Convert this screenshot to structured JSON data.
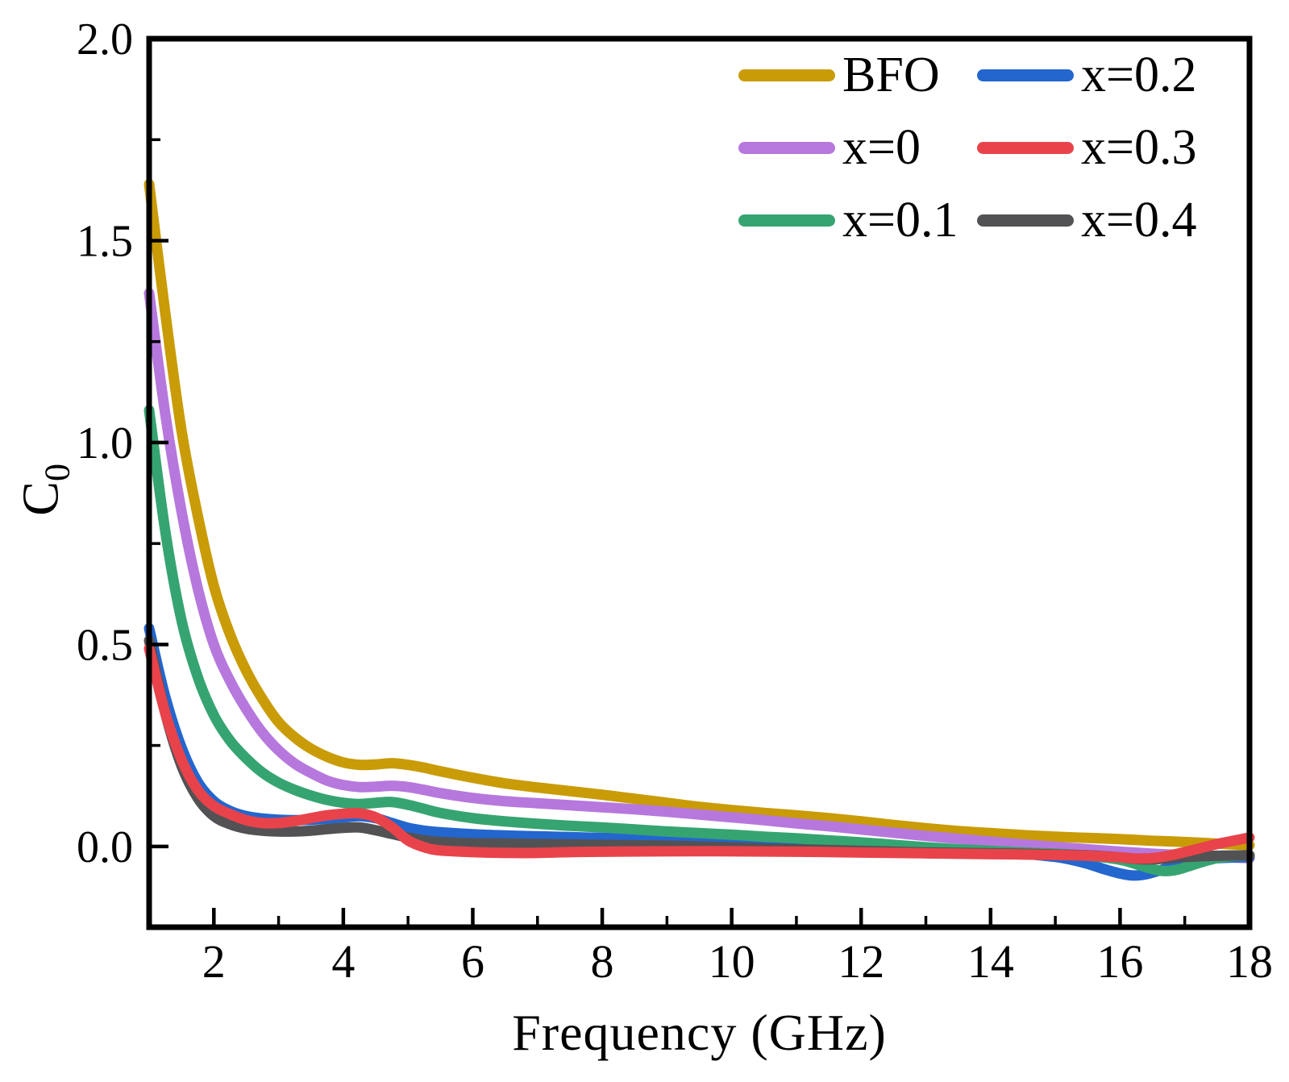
{
  "chart_data": {
    "type": "line",
    "title": "",
    "xlabel": "Frequency (GHz)",
    "ylabel_main": "C",
    "ylabel_sub": "0",
    "xlim": [
      1,
      18
    ],
    "ylim": [
      -0.2,
      2.0
    ],
    "x_major_ticks": [
      2,
      4,
      6,
      8,
      10,
      12,
      14,
      16,
      18
    ],
    "x_minor_ticks": [
      3,
      5,
      7,
      9,
      11,
      13,
      15,
      17
    ],
    "y_major_ticks": [
      0.0,
      0.5,
      1.0,
      1.5,
      2.0
    ],
    "y_minor_ticks": [
      0.25,
      0.75,
      1.25,
      1.75
    ],
    "y_tick_decimals": 1,
    "grid": false,
    "legend_position": "top-right inside plot, 2 columns, no frame",
    "axis_color": "#000000",
    "series": [
      {
        "name": "BFO",
        "color": "#C99B06",
        "points": [
          [
            1,
            1.64
          ],
          [
            1.25,
            1.32
          ],
          [
            1.5,
            1.03
          ],
          [
            1.75,
            0.82
          ],
          [
            2,
            0.645
          ],
          [
            2.25,
            0.525
          ],
          [
            2.5,
            0.435
          ],
          [
            2.75,
            0.365
          ],
          [
            3,
            0.308
          ],
          [
            3.25,
            0.27
          ],
          [
            3.5,
            0.242
          ],
          [
            3.75,
            0.222
          ],
          [
            4,
            0.208
          ],
          [
            4.25,
            0.202
          ],
          [
            4.5,
            0.203
          ],
          [
            4.75,
            0.206
          ],
          [
            5,
            0.202
          ],
          [
            5.25,
            0.195
          ],
          [
            5.5,
            0.186
          ],
          [
            6,
            0.17
          ],
          [
            6.5,
            0.156
          ],
          [
            7,
            0.146
          ],
          [
            7.5,
            0.137
          ],
          [
            8,
            0.128
          ],
          [
            8.5,
            0.118
          ],
          [
            9,
            0.108
          ],
          [
            9.5,
            0.098
          ],
          [
            10,
            0.09
          ],
          [
            10.5,
            0.083
          ],
          [
            11,
            0.077
          ],
          [
            11.5,
            0.07
          ],
          [
            12,
            0.062
          ],
          [
            12.5,
            0.053
          ],
          [
            13,
            0.045
          ],
          [
            13.5,
            0.038
          ],
          [
            14,
            0.033
          ],
          [
            14.5,
            0.028
          ],
          [
            15,
            0.024
          ],
          [
            15.5,
            0.021
          ],
          [
            16,
            0.018
          ],
          [
            16.5,
            0.014
          ],
          [
            17,
            0.011
          ],
          [
            17.5,
            0.007
          ],
          [
            18,
            0.003
          ]
        ]
      },
      {
        "name": "x=0",
        "color": "#B678DD",
        "points": [
          [
            1,
            1.37
          ],
          [
            1.25,
            1.07
          ],
          [
            1.5,
            0.83
          ],
          [
            1.75,
            0.64
          ],
          [
            2,
            0.5
          ],
          [
            2.25,
            0.41
          ],
          [
            2.5,
            0.34
          ],
          [
            2.75,
            0.282
          ],
          [
            3,
            0.238
          ],
          [
            3.25,
            0.205
          ],
          [
            3.5,
            0.182
          ],
          [
            3.75,
            0.163
          ],
          [
            4,
            0.152
          ],
          [
            4.25,
            0.147
          ],
          [
            4.5,
            0.148
          ],
          [
            4.75,
            0.15
          ],
          [
            5,
            0.147
          ],
          [
            5.25,
            0.14
          ],
          [
            5.5,
            0.132
          ],
          [
            6,
            0.12
          ],
          [
            6.5,
            0.112
          ],
          [
            7,
            0.107
          ],
          [
            7.5,
            0.102
          ],
          [
            8,
            0.097
          ],
          [
            8.5,
            0.092
          ],
          [
            9,
            0.086
          ],
          [
            9.5,
            0.079
          ],
          [
            10,
            0.072
          ],
          [
            10.5,
            0.065
          ],
          [
            11,
            0.057
          ],
          [
            11.5,
            0.05
          ],
          [
            12,
            0.042
          ],
          [
            12.5,
            0.034
          ],
          [
            13,
            0.026
          ],
          [
            13.5,
            0.019
          ],
          [
            14,
            0.012
          ],
          [
            14.5,
            0.005
          ],
          [
            15,
            -0.001
          ],
          [
            15.5,
            -0.007
          ],
          [
            16,
            -0.013
          ],
          [
            16.5,
            -0.018
          ],
          [
            17,
            -0.022
          ],
          [
            17.5,
            -0.026
          ],
          [
            18,
            -0.029
          ]
        ]
      },
      {
        "name": "x=0.1",
        "color": "#36A471",
        "points": [
          [
            1,
            1.08
          ],
          [
            1.25,
            0.78
          ],
          [
            1.5,
            0.56
          ],
          [
            1.75,
            0.42
          ],
          [
            2,
            0.325
          ],
          [
            2.25,
            0.262
          ],
          [
            2.5,
            0.218
          ],
          [
            2.75,
            0.183
          ],
          [
            3,
            0.158
          ],
          [
            3.25,
            0.14
          ],
          [
            3.5,
            0.126
          ],
          [
            3.75,
            0.115
          ],
          [
            4,
            0.108
          ],
          [
            4.25,
            0.105
          ],
          [
            4.5,
            0.108
          ],
          [
            4.75,
            0.11
          ],
          [
            5,
            0.103
          ],
          [
            5.25,
            0.093
          ],
          [
            5.5,
            0.083
          ],
          [
            6,
            0.07
          ],
          [
            6.5,
            0.062
          ],
          [
            7,
            0.056
          ],
          [
            7.5,
            0.051
          ],
          [
            8,
            0.047
          ],
          [
            8.5,
            0.042
          ],
          [
            9,
            0.037
          ],
          [
            9.5,
            0.033
          ],
          [
            10,
            0.029
          ],
          [
            10.5,
            0.024
          ],
          [
            11,
            0.02
          ],
          [
            11.5,
            0.015
          ],
          [
            12,
            0.01
          ],
          [
            12.5,
            0.004
          ],
          [
            13,
            -0.002
          ],
          [
            13.5,
            -0.007
          ],
          [
            14,
            -0.011
          ],
          [
            14.5,
            -0.015
          ],
          [
            15,
            -0.018
          ],
          [
            15.5,
            -0.023
          ],
          [
            16,
            -0.033
          ],
          [
            16.25,
            -0.044
          ],
          [
            16.5,
            -0.056
          ],
          [
            16.7,
            -0.061
          ],
          [
            16.9,
            -0.057
          ],
          [
            17.1,
            -0.047
          ],
          [
            17.3,
            -0.037
          ],
          [
            17.5,
            -0.029
          ],
          [
            17.75,
            -0.024
          ],
          [
            18,
            -0.022
          ]
        ]
      },
      {
        "name": "x=0.2",
        "color": "#2366CE",
        "points": [
          [
            1,
            0.54
          ],
          [
            1.25,
            0.37
          ],
          [
            1.5,
            0.245
          ],
          [
            1.75,
            0.16
          ],
          [
            2,
            0.112
          ],
          [
            2.25,
            0.088
          ],
          [
            2.5,
            0.075
          ],
          [
            2.75,
            0.069
          ],
          [
            3,
            0.066
          ],
          [
            3.25,
            0.065
          ],
          [
            3.5,
            0.066
          ],
          [
            3.75,
            0.069
          ],
          [
            4,
            0.072
          ],
          [
            4.25,
            0.075
          ],
          [
            4.5,
            0.07
          ],
          [
            4.75,
            0.058
          ],
          [
            5,
            0.046
          ],
          [
            5.25,
            0.039
          ],
          [
            5.5,
            0.035
          ],
          [
            6,
            0.03
          ],
          [
            6.5,
            0.027
          ],
          [
            7,
            0.025
          ],
          [
            7.5,
            0.023
          ],
          [
            8,
            0.021
          ],
          [
            8.5,
            0.019
          ],
          [
            9,
            0.017
          ],
          [
            9.5,
            0.015
          ],
          [
            10,
            0.013
          ],
          [
            10.5,
            0.011
          ],
          [
            11,
            0.009
          ],
          [
            11.5,
            0.007
          ],
          [
            12,
            0.004
          ],
          [
            12.5,
            0.0
          ],
          [
            13,
            -0.005
          ],
          [
            13.5,
            -0.009
          ],
          [
            14,
            -0.013
          ],
          [
            14.5,
            -0.018
          ],
          [
            15,
            -0.026
          ],
          [
            15.25,
            -0.033
          ],
          [
            15.5,
            -0.043
          ],
          [
            15.75,
            -0.056
          ],
          [
            16,
            -0.067
          ],
          [
            16.2,
            -0.072
          ],
          [
            16.4,
            -0.069
          ],
          [
            16.6,
            -0.06
          ],
          [
            16.8,
            -0.05
          ],
          [
            17,
            -0.041
          ],
          [
            17.25,
            -0.033
          ],
          [
            17.5,
            -0.029
          ],
          [
            18,
            -0.026
          ]
        ]
      },
      {
        "name": "x=0.3",
        "color": "#E8434B",
        "points": [
          [
            1,
            0.49
          ],
          [
            1.25,
            0.33
          ],
          [
            1.5,
            0.215
          ],
          [
            1.75,
            0.14
          ],
          [
            2,
            0.1
          ],
          [
            2.25,
            0.08
          ],
          [
            2.5,
            0.065
          ],
          [
            2.75,
            0.058
          ],
          [
            3,
            0.058
          ],
          [
            3.25,
            0.063
          ],
          [
            3.5,
            0.07
          ],
          [
            3.75,
            0.077
          ],
          [
            4,
            0.081
          ],
          [
            4.25,
            0.082
          ],
          [
            4.5,
            0.072
          ],
          [
            4.75,
            0.048
          ],
          [
            5,
            0.015
          ],
          [
            5.25,
            -0.002
          ],
          [
            5.5,
            -0.01
          ],
          [
            6,
            -0.014
          ],
          [
            6.5,
            -0.016
          ],
          [
            7,
            -0.016
          ],
          [
            7.5,
            -0.014
          ],
          [
            8,
            -0.013
          ],
          [
            9,
            -0.012
          ],
          [
            10,
            -0.012
          ],
          [
            11,
            -0.013
          ],
          [
            12,
            -0.015
          ],
          [
            13,
            -0.017
          ],
          [
            14,
            -0.019
          ],
          [
            15,
            -0.021
          ],
          [
            15.5,
            -0.023
          ],
          [
            16,
            -0.027
          ],
          [
            16.25,
            -0.03
          ],
          [
            16.5,
            -0.029
          ],
          [
            16.75,
            -0.023
          ],
          [
            17,
            -0.014
          ],
          [
            17.25,
            -0.004
          ],
          [
            17.5,
            0.006
          ],
          [
            17.75,
            0.014
          ],
          [
            18,
            0.022
          ]
        ]
      },
      {
        "name": "x=0.4",
        "color": "#525255",
        "points": [
          [
            1,
            0.51
          ],
          [
            1.25,
            0.33
          ],
          [
            1.5,
            0.2
          ],
          [
            1.75,
            0.12
          ],
          [
            2,
            0.075
          ],
          [
            2.25,
            0.055
          ],
          [
            2.5,
            0.044
          ],
          [
            2.75,
            0.039
          ],
          [
            3,
            0.037
          ],
          [
            3.25,
            0.037
          ],
          [
            3.5,
            0.039
          ],
          [
            3.75,
            0.043
          ],
          [
            4,
            0.046
          ],
          [
            4.25,
            0.047
          ],
          [
            4.5,
            0.04
          ],
          [
            4.75,
            0.031
          ],
          [
            5,
            0.022
          ],
          [
            5.25,
            0.015
          ],
          [
            5.5,
            0.011
          ],
          [
            6,
            0.008
          ],
          [
            6.5,
            0.007
          ],
          [
            7,
            0.006
          ],
          [
            7.5,
            0.005
          ],
          [
            8,
            0.004
          ],
          [
            8.5,
            0.003
          ],
          [
            9,
            0.002
          ],
          [
            9.5,
            0.0
          ],
          [
            10,
            -0.002
          ],
          [
            10.5,
            -0.005
          ],
          [
            11,
            -0.007
          ],
          [
            11.5,
            -0.009
          ],
          [
            12,
            -0.011
          ],
          [
            12.5,
            -0.013
          ],
          [
            13,
            -0.015
          ],
          [
            13.5,
            -0.016
          ],
          [
            14,
            -0.017
          ],
          [
            14.5,
            -0.018
          ],
          [
            15,
            -0.02
          ],
          [
            15.5,
            -0.022
          ],
          [
            16,
            -0.027
          ],
          [
            16.25,
            -0.031
          ],
          [
            16.5,
            -0.032
          ],
          [
            16.75,
            -0.029
          ],
          [
            17,
            -0.026
          ],
          [
            17.5,
            -0.023
          ],
          [
            18,
            -0.022
          ]
        ]
      }
    ]
  }
}
